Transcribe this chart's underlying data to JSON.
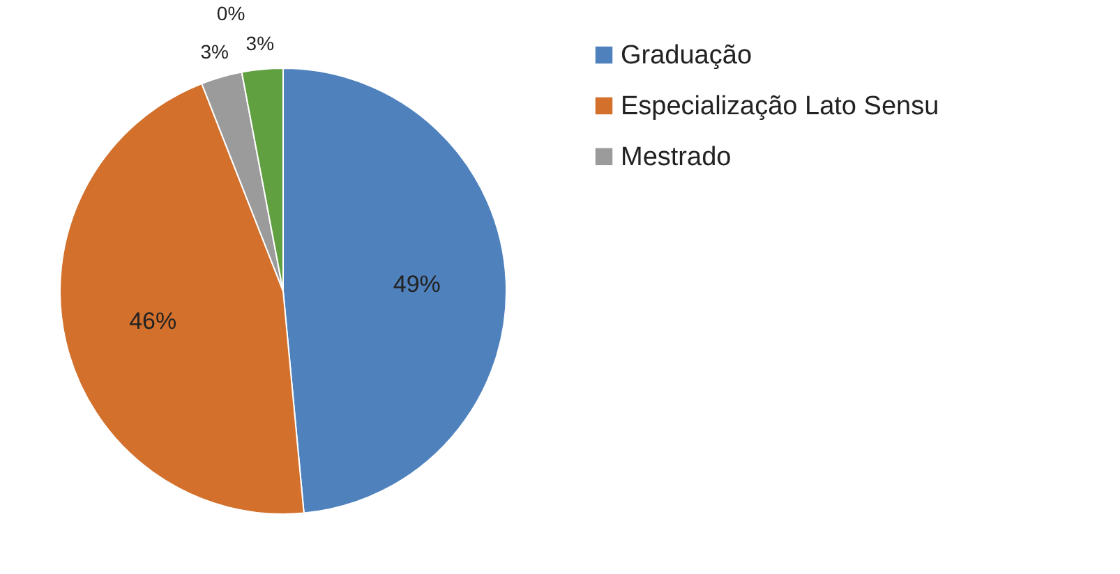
{
  "chart_data": {
    "type": "pie",
    "categories": [
      "Graduação",
      "Especialização Lato Sensu",
      "Mestrado",
      null,
      null
    ],
    "values": [
      49,
      46,
      3,
      0,
      3
    ],
    "colors": [
      "#4f81bd",
      "#d2702c",
      "#9b9b9b",
      "#7f60a0",
      "#60a040"
    ],
    "value_labels": [
      "49%",
      "46%",
      "3%",
      "0%",
      "3%"
    ],
    "legend": "right"
  }
}
